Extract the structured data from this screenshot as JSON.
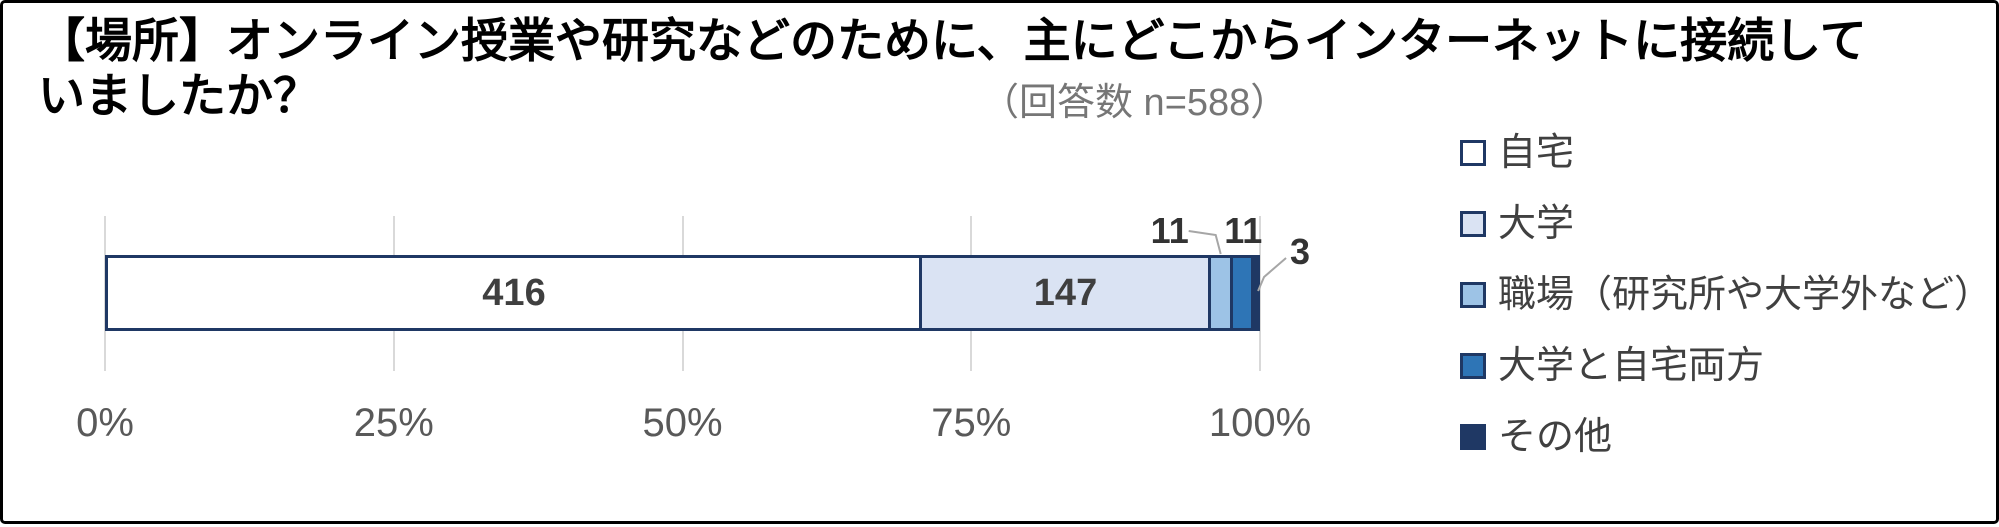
{
  "frame": {
    "background": "#FFFFFF",
    "border_color": "#000000"
  },
  "chart_data": {
    "type": "bar",
    "orientation": "horizontal",
    "stacked": true,
    "title": "【場所】オンライン授業や研究などのために、主にどこからインターネットに接続していましたか？",
    "subtitle": "（回答数 n=588）",
    "sample_size": 588,
    "categories": [
      "自宅",
      "大学",
      "職場（研究所や大学外など）",
      "大学と自宅両方",
      "その他"
    ],
    "values": [
      416,
      147,
      11,
      11,
      3
    ],
    "segment_colors": [
      "#FFFFFF",
      "#DAE3F3",
      "#9DC3E6",
      "#2E75B6",
      "#1F3864"
    ],
    "x_tick_labels": [
      "0%",
      "25%",
      "50%",
      "75%",
      "100%"
    ],
    "xlim_pct": [
      0,
      100
    ],
    "grid": true,
    "legend_position": "right",
    "styles": {
      "title_text": "#000000",
      "subtitle_text": "#767676",
      "segment_border": "#1F3864",
      "gridline": "#D9D9D9",
      "tick_text": "#595959",
      "inside_label_text": "#3F3F3F",
      "outside_label_text": "#333333",
      "legend_text": "#404040",
      "leader_line": "#A6A6A6"
    }
  }
}
